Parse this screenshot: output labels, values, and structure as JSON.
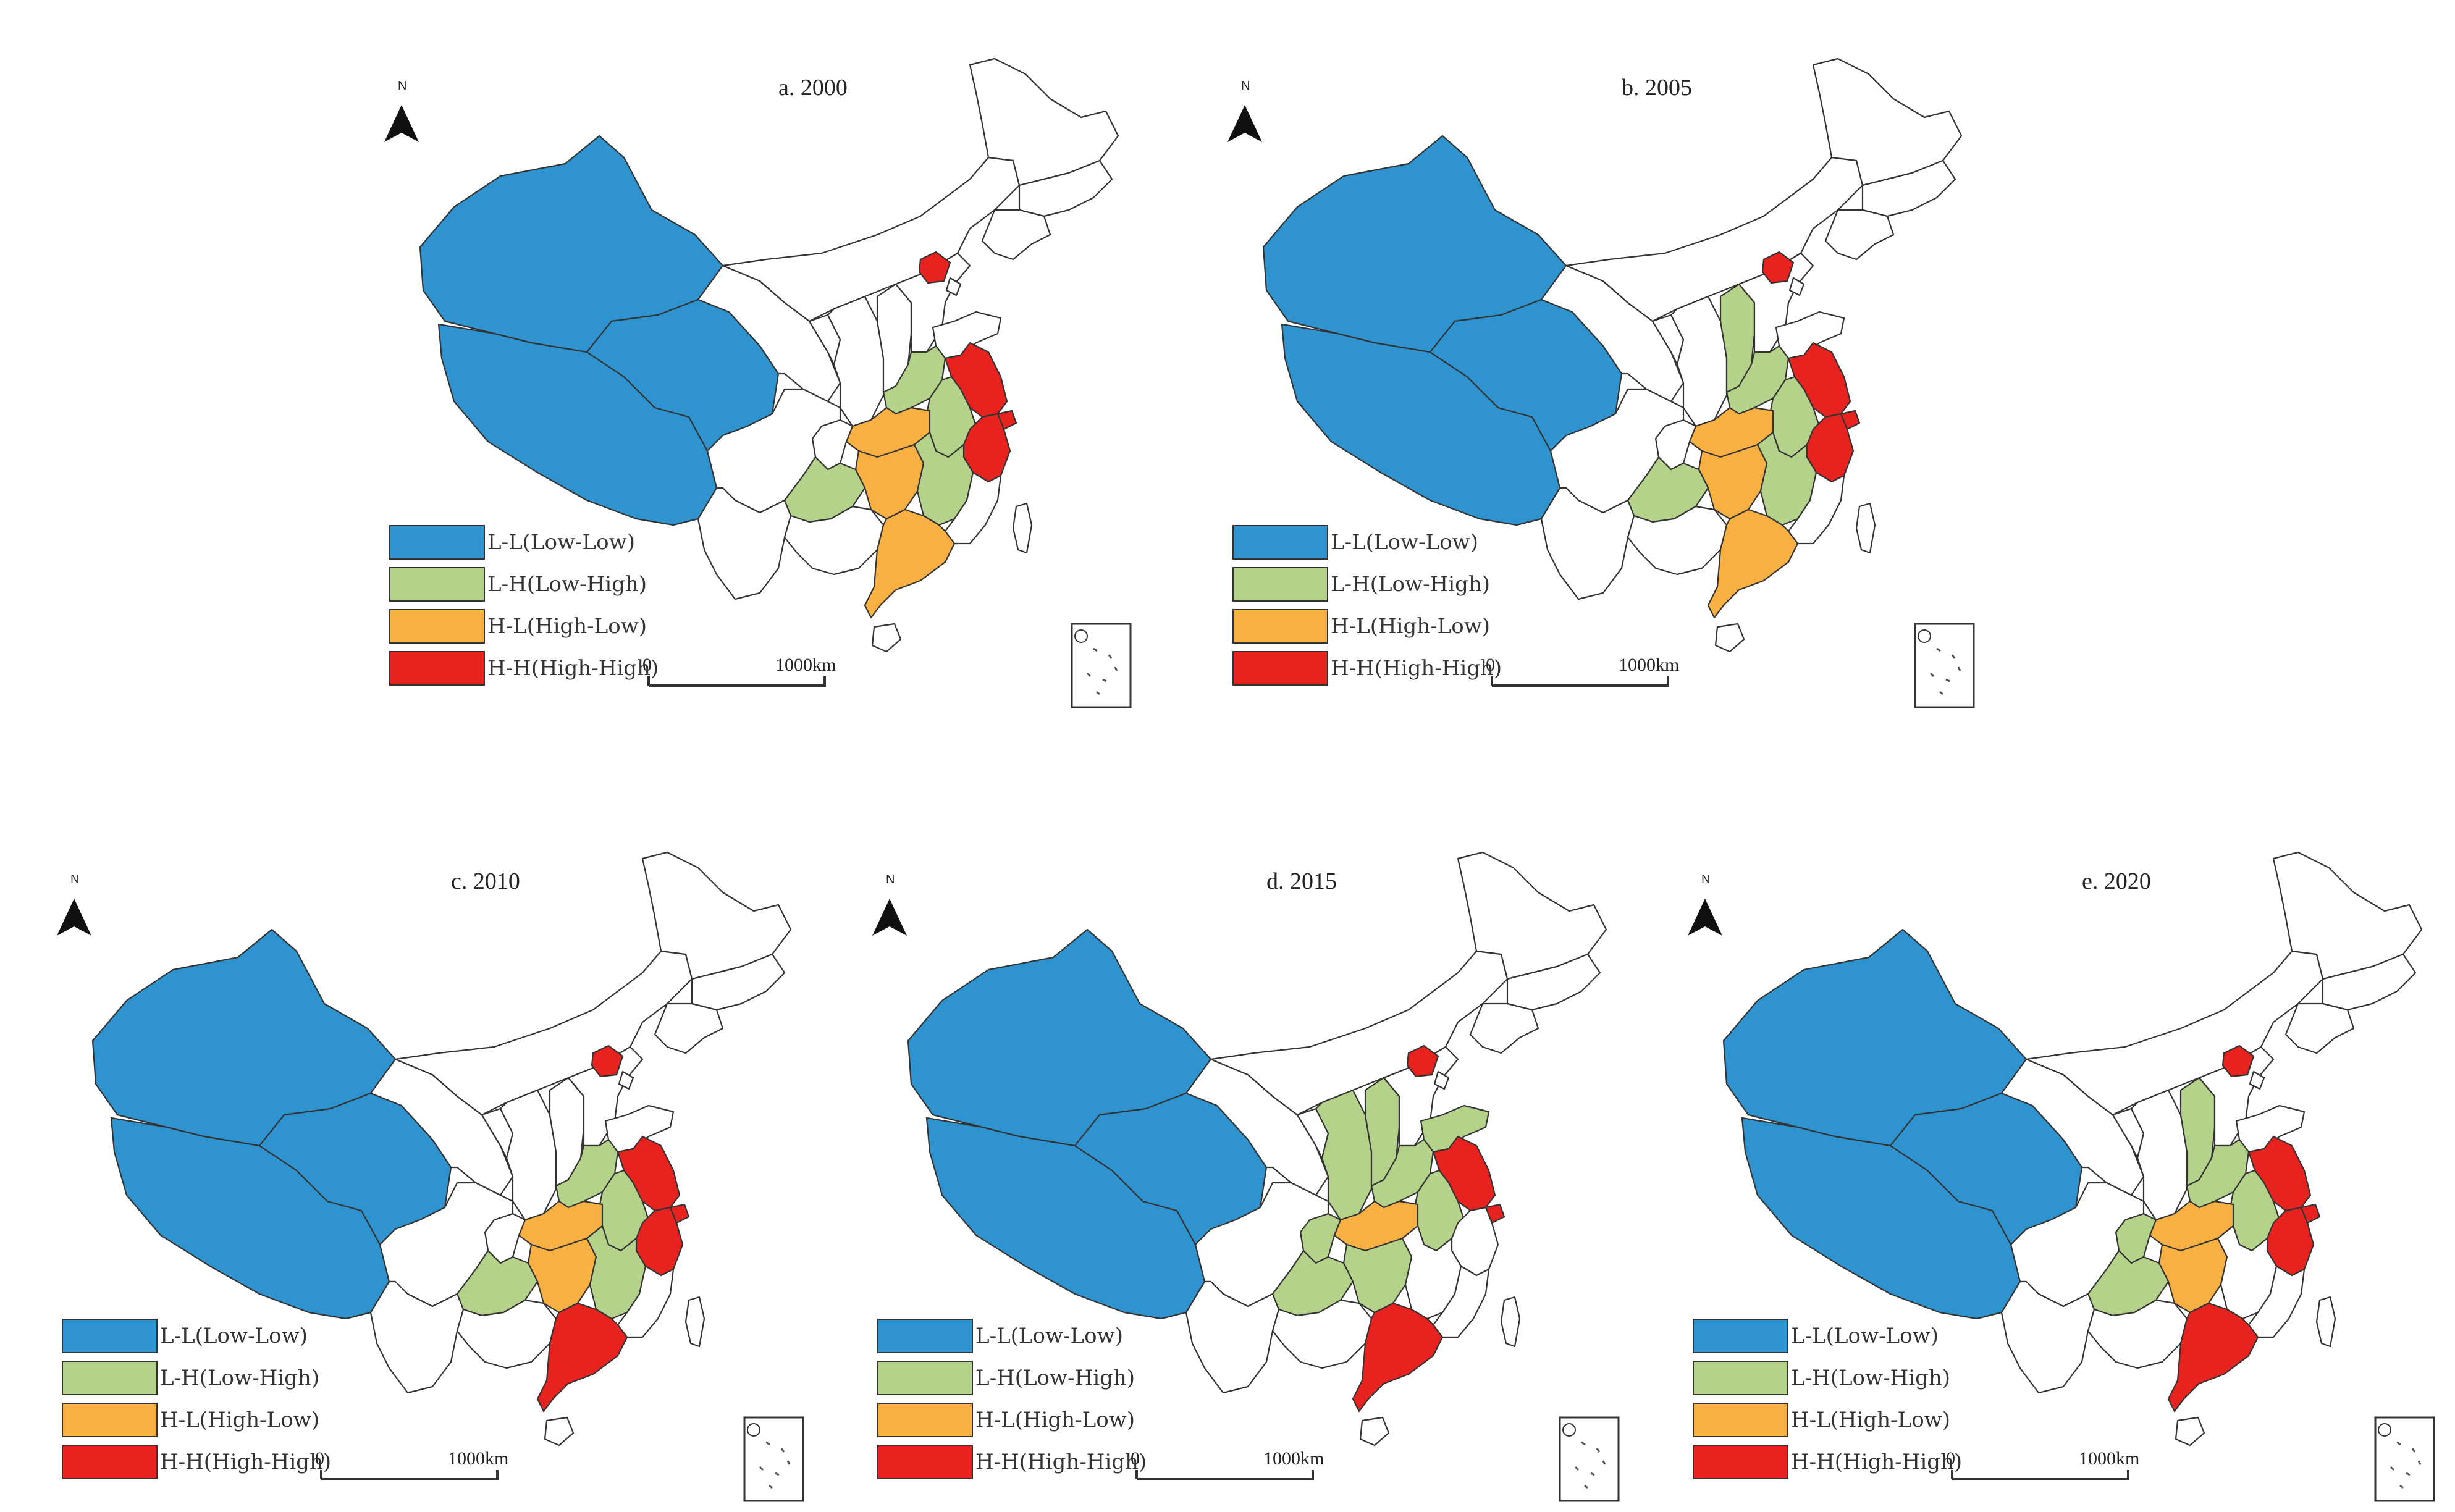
{
  "legend": [
    {
      "key": "LL",
      "label": "L-L(Low-Low)",
      "color": "#2e93cf"
    },
    {
      "key": "LH",
      "label": "L-H(Low-High)",
      "color": "#b5d28b"
    },
    {
      "key": "HL",
      "label": "H-L(High-Low)",
      "color": "#f9b042"
    },
    {
      "key": "HH",
      "label": "H-H(High-High)",
      "color": "#e8231f"
    }
  ],
  "north_label": "N",
  "scale": {
    "start": "0",
    "end": "1000km"
  },
  "panels": [
    {
      "title": "a. 2000",
      "regions": {
        "Xinjiang": "LL",
        "Tibet": "LL",
        "Qinghai": "LL",
        "Beijing": "HH",
        "Jiangsu": "HH",
        "Zhejiang": "HH",
        "Shanghai": "HH",
        "Henan": "LH",
        "Anhui": "LH",
        "Jiangxi": "LH",
        "Guizhou": "LH",
        "Hubei": "HL",
        "Hunan": "HL",
        "Guangdong": "HL"
      }
    },
    {
      "title": "b. 2005",
      "regions": {
        "Xinjiang": "LL",
        "Tibet": "LL",
        "Qinghai": "LL",
        "Beijing": "HH",
        "Jiangsu": "HH",
        "Zhejiang": "HH",
        "Shanghai": "HH",
        "Shanxi": "LH",
        "Henan": "LH",
        "Anhui": "LH",
        "Jiangxi": "LH",
        "Guizhou": "LH",
        "Hubei": "HL",
        "Hunan": "HL",
        "Guangdong": "HL"
      }
    },
    {
      "title": "c. 2010",
      "regions": {
        "Xinjiang": "LL",
        "Tibet": "LL",
        "Qinghai": "LL",
        "Beijing": "HH",
        "Jiangsu": "HH",
        "Zhejiang": "HH",
        "Shanghai": "HH",
        "Guangdong": "HH",
        "Henan": "LH",
        "Anhui": "LH",
        "Jiangxi": "LH",
        "Guizhou": "LH",
        "Hubei": "HL",
        "Hunan": "HL"
      }
    },
    {
      "title": "d. 2015",
      "regions": {
        "Xinjiang": "LL",
        "Tibet": "LL",
        "Qinghai": "LL",
        "Beijing": "HH",
        "Jiangsu": "HH",
        "Shanghai": "HH",
        "Guangdong": "HH",
        "Shanxi": "LH",
        "Shaanxi": "LH",
        "Shandong": "LH",
        "Henan": "LH",
        "Anhui": "LH",
        "Hunan": "LH",
        "Guizhou": "LH",
        "Chongqing": "LH",
        "Hubei": "HL"
      }
    },
    {
      "title": "e. 2020",
      "regions": {
        "Xinjiang": "LL",
        "Tibet": "LL",
        "Qinghai": "LL",
        "Beijing": "HH",
        "Jiangsu": "HH",
        "Zhejiang": "HH",
        "Shanghai": "HH",
        "Guangdong": "HH",
        "Shanxi": "LH",
        "Henan": "LH",
        "Anhui": "LH",
        "Guizhou": "LH",
        "Chongqing": "LH",
        "Hubei": "HL",
        "Hunan": "HL"
      }
    }
  ]
}
